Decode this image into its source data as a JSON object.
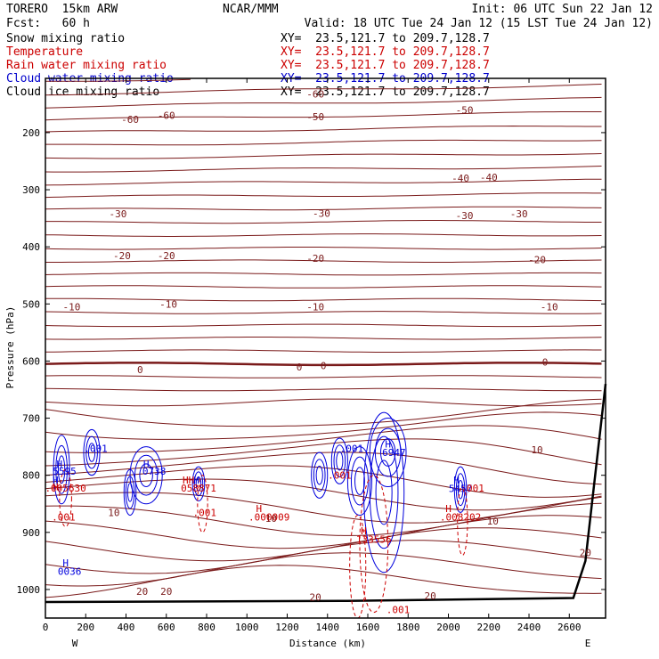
{
  "header": {
    "model": "TORERO  15km ARW",
    "org": "NCAR/MMM",
    "init": "Init: 06 UTC Sun 22 Jan 12",
    "fcst": "Fcst:   60 h",
    "valid": "Valid: 18 UTC Tue 24 Jan 12 (15 LST Tue 24 Jan 12)"
  },
  "fields": [
    {
      "name": "Snow mixing ratio",
      "color": "#000000",
      "xy": "XY=  23.5,121.7 to 209.7,128.7"
    },
    {
      "name": "Temperature",
      "color": "#cc0000",
      "xy": "XY=  23.5,121.7 to 209.7,128.7"
    },
    {
      "name": "Rain water mixing ratio",
      "color": "#cc0000",
      "xy": "XY=  23.5,121.7 to 209.7,128.7"
    },
    {
      "name": "Cloud water mixing ratio",
      "color": "#0000cc",
      "xy": "XY=  23.5,121.7 to 209.7,128.7"
    },
    {
      "name": "Cloud ice mixing ratio",
      "color": "#000000",
      "xy": "XY=  23.5,121.7 to 209.7,128.7"
    }
  ],
  "chart_data": {
    "type": "cross-section contour",
    "xlabel": "Distance (km)",
    "ylabel": "Pressure (hPa)",
    "x_ticks": [
      0,
      200,
      400,
      600,
      800,
      1000,
      1200,
      1400,
      1600,
      1800,
      2000,
      2200,
      2400,
      2600
    ],
    "y_ticks": [
      200,
      300,
      400,
      500,
      600,
      700,
      800,
      900,
      1000
    ],
    "xlim": [
      0,
      2780
    ],
    "ylim": [
      1050,
      105
    ],
    "x_end_labels": {
      "left": "W",
      "right": "E"
    },
    "colors": {
      "temperature": "#7a1a1a",
      "freezing": "#7a1a1a",
      "cloud_water": "#0000dd",
      "rain": "#cc0000",
      "terrain": "#000000"
    },
    "temperature_labels": [
      {
        "value": "-60",
        "x": 1340,
        "p": 132
      },
      {
        "value": "-60",
        "x": 420,
        "p": 177
      },
      {
        "value": "-60",
        "x": 600,
        "p": 170
      },
      {
        "value": "-50",
        "x": 1340,
        "p": 172
      },
      {
        "value": "-50",
        "x": 2080,
        "p": 160
      },
      {
        "value": "-40",
        "x": 2060,
        "p": 280
      },
      {
        "value": "-40",
        "x": 2200,
        "p": 278
      },
      {
        "value": "-30",
        "x": 360,
        "p": 342
      },
      {
        "value": "-30",
        "x": 1370,
        "p": 341
      },
      {
        "value": "-30",
        "x": 2080,
        "p": 345
      },
      {
        "value": "-30",
        "x": 2350,
        "p": 342
      },
      {
        "value": "-20",
        "x": 380,
        "p": 415
      },
      {
        "value": "-20",
        "x": 600,
        "p": 415
      },
      {
        "value": "-20",
        "x": 1340,
        "p": 420
      },
      {
        "value": "-20",
        "x": 2440,
        "p": 422
      },
      {
        "value": "-10",
        "x": 130,
        "p": 505
      },
      {
        "value": "-10",
        "x": 610,
        "p": 500
      },
      {
        "value": "-10",
        "x": 1340,
        "p": 505
      },
      {
        "value": "-10",
        "x": 2500,
        "p": 505
      },
      {
        "value": "0",
        "x": 470,
        "p": 615
      },
      {
        "value": "0",
        "x": 1260,
        "p": 610
      },
      {
        "value": "0",
        "x": 1380,
        "p": 608
      },
      {
        "value": "0",
        "x": 2480,
        "p": 602
      },
      {
        "value": "10",
        "x": 2440,
        "p": 755
      },
      {
        "value": "10",
        "x": 340,
        "p": 865
      },
      {
        "value": "10",
        "x": 1120,
        "p": 875
      },
      {
        "value": "10",
        "x": 2220,
        "p": 880
      },
      {
        "value": "20",
        "x": 2680,
        "p": 935
      },
      {
        "value": "20",
        "x": 480,
        "p": 1003
      },
      {
        "value": "20",
        "x": 600,
        "p": 1003
      },
      {
        "value": "20",
        "x": 1340,
        "p": 1013
      },
      {
        "value": "20",
        "x": 1910,
        "p": 1011
      }
    ],
    "cloud_water_labels": [
      {
        "value": "H",
        "x": 70,
        "p": 780
      },
      {
        "value": "5595",
        "x": 95,
        "p": 793
      },
      {
        "value": "H",
        "x": 50,
        "p": 808
      },
      {
        "value": ".001",
        "x": 250,
        "p": 753
      },
      {
        "value": "H",
        "x": 500,
        "p": 780
      },
      {
        "value": "0738",
        "x": 540,
        "p": 793
      },
      {
        "value": "H",
        "x": 750,
        "p": 808
      },
      {
        "value": "H",
        "x": 100,
        "p": 953
      },
      {
        "value": "0036",
        "x": 120,
        "p": 968
      },
      {
        "value": ".001",
        "x": 1520,
        "p": 753
      },
      {
        "value": "H",
        "x": 1700,
        "p": 745
      },
      {
        "value": "6947",
        "x": 1730,
        "p": 760
      },
      {
        "value": "H",
        "x": 2040,
        "p": 808
      },
      {
        "value": "5457",
        "x": 2060,
        "p": 823
      }
    ],
    "rain_labels": [
      {
        "value": "H",
        "x": 50,
        "p": 820
      },
      {
        "value": ".005630",
        "x": 100,
        "p": 822
      },
      {
        "value": ".001",
        "x": 90,
        "p": 873
      },
      {
        "value": "HH",
        "x": 710,
        "p": 808
      },
      {
        "value": "058871",
        "x": 760,
        "p": 822
      },
      {
        "value": ".001",
        "x": 790,
        "p": 865
      },
      {
        "value": "H",
        "x": 1060,
        "p": 858
      },
      {
        "value": ".000009",
        "x": 1110,
        "p": 873
      },
      {
        "value": ".001",
        "x": 1460,
        "p": 800
      },
      {
        "value": "H",
        "x": 1580,
        "p": 897
      },
      {
        "value": "133556",
        "x": 1630,
        "p": 912
      },
      {
        "value": "H",
        "x": 2000,
        "p": 858
      },
      {
        "value": ".008202",
        "x": 2060,
        "p": 873
      },
      {
        "value": ".001",
        "x": 2120,
        "p": 822
      },
      {
        "value": ".001",
        "x": 1750,
        "p": 1035
      }
    ]
  }
}
